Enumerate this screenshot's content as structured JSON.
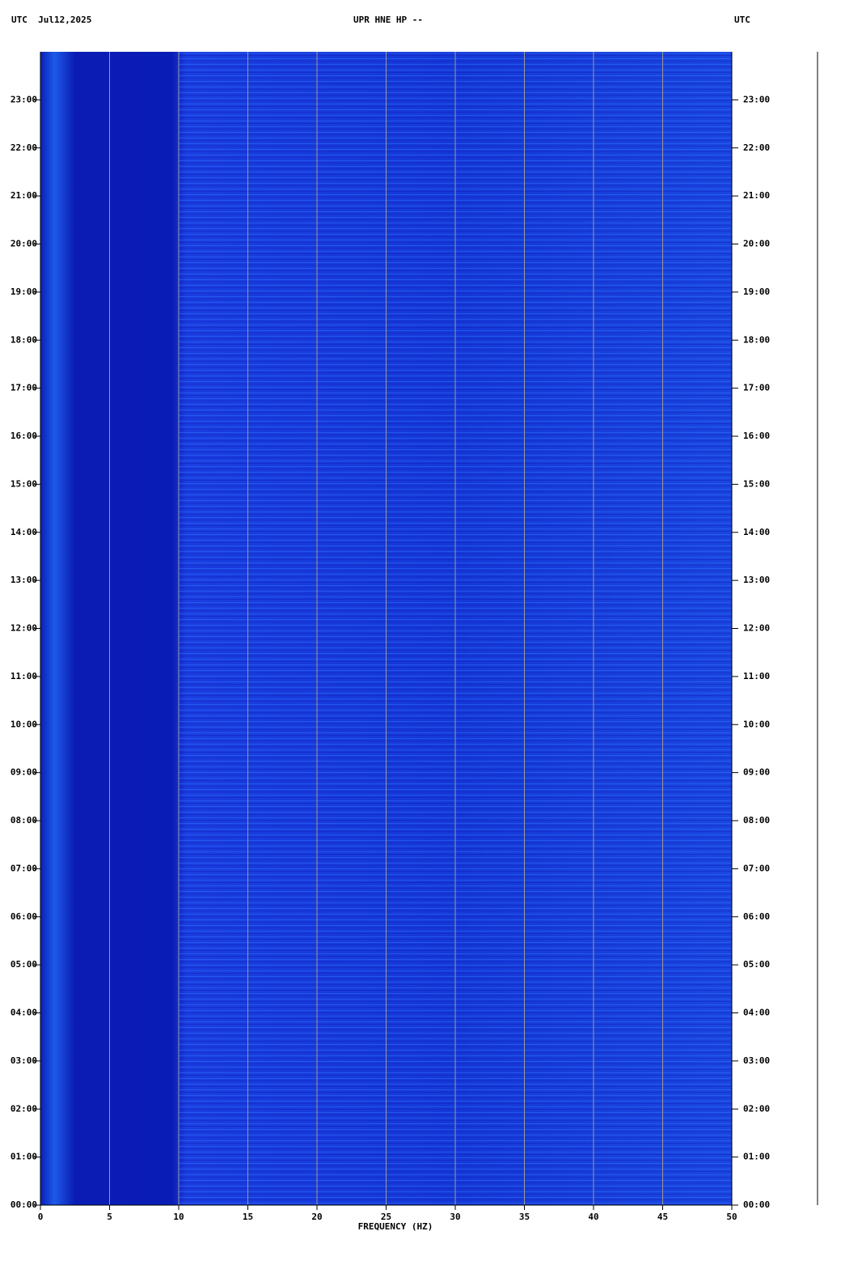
{
  "chart_data": {
    "type": "spectrogram",
    "title": "UPR HNE HP --",
    "date_label": "UTC  Jul12,2025",
    "right_label": "UTC",
    "xlabel": "FREQUENCY (HZ)",
    "xlim": [
      0,
      50
    ],
    "xticks": [
      0,
      5,
      10,
      15,
      20,
      25,
      30,
      35,
      40,
      45,
      50
    ],
    "ylim": [
      0,
      24
    ],
    "yticks": [
      {
        "value": 0,
        "label": "00:00"
      },
      {
        "value": 1,
        "label": "01:00"
      },
      {
        "value": 2,
        "label": "02:00"
      },
      {
        "value": 3,
        "label": "03:00"
      },
      {
        "value": 4,
        "label": "04:00"
      },
      {
        "value": 5,
        "label": "05:00"
      },
      {
        "value": 6,
        "label": "06:00"
      },
      {
        "value": 7,
        "label": "07:00"
      },
      {
        "value": 8,
        "label": "08:00"
      },
      {
        "value": 9,
        "label": "09:00"
      },
      {
        "value": 10,
        "label": "10:00"
      },
      {
        "value": 11,
        "label": "11:00"
      },
      {
        "value": 12,
        "label": "12:00"
      },
      {
        "value": 13,
        "label": "13:00"
      },
      {
        "value": 14,
        "label": "14:00"
      },
      {
        "value": 15,
        "label": "15:00"
      },
      {
        "value": 16,
        "label": "16:00"
      },
      {
        "value": 17,
        "label": "17:00"
      },
      {
        "value": 18,
        "label": "18:00"
      },
      {
        "value": 19,
        "label": "19:00"
      },
      {
        "value": 20,
        "label": "20:00"
      },
      {
        "value": 21,
        "label": "21:00"
      },
      {
        "value": 22,
        "label": "22:00"
      },
      {
        "value": 23,
        "label": "23:00"
      }
    ],
    "grid": true,
    "grid_color": "#9a9a9a"
  }
}
